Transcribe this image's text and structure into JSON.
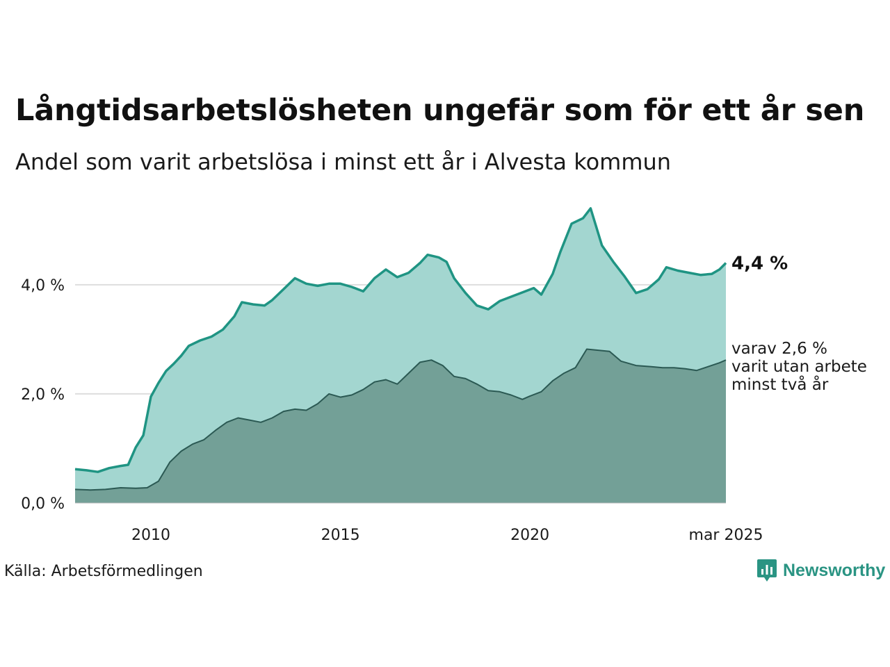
{
  "header": {
    "title": "Långtidsarbetslösheten ungefär som för ett år sen",
    "subtitle": "Andel som varit arbetslösa i minst ett år i Alvesta kommun"
  },
  "footer": {
    "source": "Källa: Arbetsförmedlingen",
    "brand": "Newsworthy"
  },
  "colors": {
    "long_line": "#1f9483",
    "long_fill": "#a3d6d0",
    "two_year_line": "#2b5953",
    "two_year_fill": "#73a097",
    "grid": "#dddddd",
    "brand": "#2a9483"
  },
  "chart_data": {
    "type": "area",
    "xlim": [
      2008.0,
      2025.17
    ],
    "ylim": [
      0,
      5.45
    ],
    "x_ticks": [
      {
        "value": 2010.0,
        "label": "2010"
      },
      {
        "value": 2015.0,
        "label": "2015"
      },
      {
        "value": 2020.0,
        "label": "2020"
      },
      {
        "value": 2025.17,
        "label": "mar 2025"
      }
    ],
    "y_ticks": [
      {
        "value": 0,
        "label": "0,0 %"
      },
      {
        "value": 2,
        "label": "2,0 %"
      },
      {
        "value": 4,
        "label": "4,0 %"
      }
    ],
    "grid": "horizontal",
    "series": [
      {
        "key": "long",
        "end_label": "4,4 %",
        "points": [
          [
            2008.0,
            0.62
          ],
          [
            2008.3,
            0.6
          ],
          [
            2008.6,
            0.57
          ],
          [
            2008.9,
            0.64
          ],
          [
            2009.2,
            0.68
          ],
          [
            2009.4,
            0.7
          ],
          [
            2009.6,
            1.02
          ],
          [
            2009.8,
            1.24
          ],
          [
            2010.0,
            1.95
          ],
          [
            2010.2,
            2.2
          ],
          [
            2010.4,
            2.42
          ],
          [
            2010.6,
            2.55
          ],
          [
            2010.8,
            2.7
          ],
          [
            2011.0,
            2.88
          ],
          [
            2011.3,
            2.98
          ],
          [
            2011.6,
            3.05
          ],
          [
            2011.9,
            3.18
          ],
          [
            2012.2,
            3.42
          ],
          [
            2012.4,
            3.68
          ],
          [
            2012.7,
            3.64
          ],
          [
            2013.0,
            3.62
          ],
          [
            2013.2,
            3.72
          ],
          [
            2013.5,
            3.92
          ],
          [
            2013.8,
            4.12
          ],
          [
            2014.1,
            4.02
          ],
          [
            2014.4,
            3.98
          ],
          [
            2014.7,
            4.02
          ],
          [
            2015.0,
            4.02
          ],
          [
            2015.3,
            3.96
          ],
          [
            2015.6,
            3.88
          ],
          [
            2015.9,
            4.12
          ],
          [
            2016.2,
            4.28
          ],
          [
            2016.5,
            4.14
          ],
          [
            2016.8,
            4.22
          ],
          [
            2017.1,
            4.4
          ],
          [
            2017.3,
            4.55
          ],
          [
            2017.6,
            4.5
          ],
          [
            2017.8,
            4.42
          ],
          [
            2018.0,
            4.12
          ],
          [
            2018.3,
            3.85
          ],
          [
            2018.6,
            3.62
          ],
          [
            2018.9,
            3.55
          ],
          [
            2019.2,
            3.7
          ],
          [
            2019.5,
            3.78
          ],
          [
            2019.8,
            3.86
          ],
          [
            2020.1,
            3.94
          ],
          [
            2020.3,
            3.82
          ],
          [
            2020.6,
            4.2
          ],
          [
            2020.8,
            4.6
          ],
          [
            2021.1,
            5.12
          ],
          [
            2021.4,
            5.22
          ],
          [
            2021.6,
            5.4
          ],
          [
            2021.9,
            4.72
          ],
          [
            2022.2,
            4.42
          ],
          [
            2022.5,
            4.15
          ],
          [
            2022.8,
            3.85
          ],
          [
            2023.1,
            3.92
          ],
          [
            2023.4,
            4.1
          ],
          [
            2023.6,
            4.32
          ],
          [
            2023.9,
            4.26
          ],
          [
            2024.2,
            4.22
          ],
          [
            2024.5,
            4.18
          ],
          [
            2024.8,
            4.2
          ],
          [
            2025.0,
            4.28
          ],
          [
            2025.17,
            4.4
          ]
        ]
      },
      {
        "key": "two_year",
        "end_label_lines": [
          "varav 2,6 %",
          "varit utan arbete",
          "minst två år"
        ],
        "points": [
          [
            2008.0,
            0.25
          ],
          [
            2008.4,
            0.24
          ],
          [
            2008.8,
            0.25
          ],
          [
            2009.2,
            0.28
          ],
          [
            2009.6,
            0.27
          ],
          [
            2009.9,
            0.28
          ],
          [
            2010.2,
            0.4
          ],
          [
            2010.5,
            0.75
          ],
          [
            2010.8,
            0.95
          ],
          [
            2011.1,
            1.08
          ],
          [
            2011.4,
            1.16
          ],
          [
            2011.7,
            1.33
          ],
          [
            2012.0,
            1.48
          ],
          [
            2012.3,
            1.56
          ],
          [
            2012.6,
            1.52
          ],
          [
            2012.9,
            1.48
          ],
          [
            2013.2,
            1.56
          ],
          [
            2013.5,
            1.68
          ],
          [
            2013.8,
            1.72
          ],
          [
            2014.1,
            1.7
          ],
          [
            2014.4,
            1.82
          ],
          [
            2014.7,
            2.0
          ],
          [
            2015.0,
            1.94
          ],
          [
            2015.3,
            1.98
          ],
          [
            2015.6,
            2.08
          ],
          [
            2015.9,
            2.22
          ],
          [
            2016.2,
            2.26
          ],
          [
            2016.5,
            2.18
          ],
          [
            2016.8,
            2.38
          ],
          [
            2017.1,
            2.58
          ],
          [
            2017.4,
            2.62
          ],
          [
            2017.7,
            2.52
          ],
          [
            2018.0,
            2.32
          ],
          [
            2018.3,
            2.28
          ],
          [
            2018.6,
            2.18
          ],
          [
            2018.9,
            2.06
          ],
          [
            2019.2,
            2.04
          ],
          [
            2019.5,
            1.98
          ],
          [
            2019.8,
            1.9
          ],
          [
            2020.0,
            1.96
          ],
          [
            2020.3,
            2.04
          ],
          [
            2020.6,
            2.24
          ],
          [
            2020.9,
            2.38
          ],
          [
            2021.2,
            2.48
          ],
          [
            2021.5,
            2.82
          ],
          [
            2021.8,
            2.8
          ],
          [
            2022.1,
            2.78
          ],
          [
            2022.4,
            2.6
          ],
          [
            2022.8,
            2.52
          ],
          [
            2023.2,
            2.5
          ],
          [
            2023.5,
            2.48
          ],
          [
            2023.8,
            2.48
          ],
          [
            2024.1,
            2.46
          ],
          [
            2024.4,
            2.43
          ],
          [
            2024.7,
            2.5
          ],
          [
            2025.0,
            2.57
          ],
          [
            2025.17,
            2.62
          ]
        ]
      }
    ]
  }
}
